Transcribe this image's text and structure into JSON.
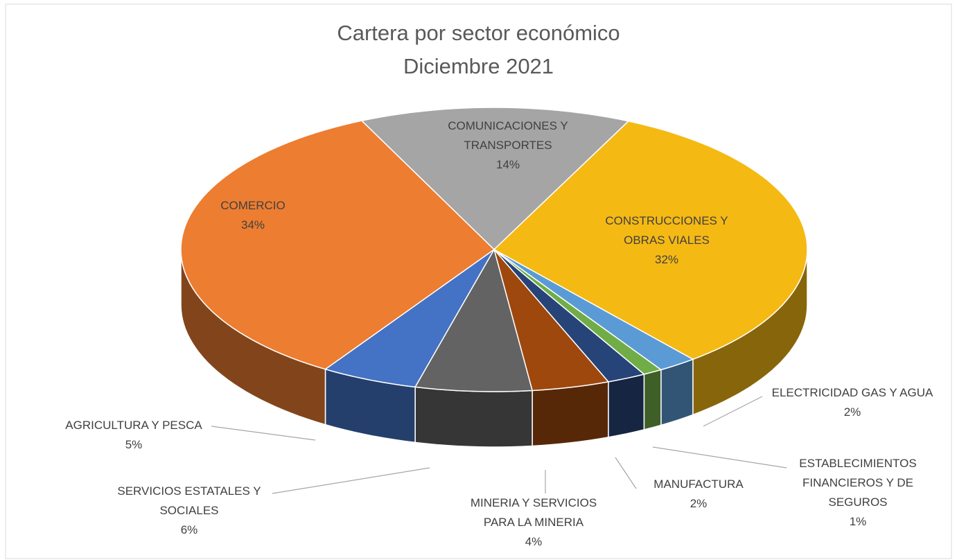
{
  "chart_data": {
    "type": "pie",
    "title": "Cartera por sector económico",
    "subtitle": "Diciembre 2021",
    "categories": [
      "COMUNICACIONES Y TRANSPORTES",
      "CONSTRUCCIONES Y OBRAS VIALES",
      "ELECTRICIDAD GAS Y AGUA",
      "ESTABLECIMIENTOS FINANCIEROS Y DE SEGUROS",
      "MANUFACTURA",
      "MINERIA Y SERVICIOS PARA LA MINERIA",
      "SERVICIOS ESTATALES Y SOCIALES",
      "AGRICULTURA Y PESCA",
      "COMERCIO"
    ],
    "values": [
      14,
      32,
      2,
      1,
      2,
      4,
      6,
      5,
      34
    ],
    "value_labels": [
      "14%",
      "32%",
      "2%",
      "1%",
      "2%",
      "4%",
      "6%",
      "5%",
      "34%"
    ],
    "colors": [
      "#a5a5a5",
      "#f5b914",
      "#5b9bd5",
      "#70ad47",
      "#264478",
      "#9e480e",
      "#636363",
      "#4472c4",
      "#ed7d31"
    ],
    "three_d": true
  }
}
